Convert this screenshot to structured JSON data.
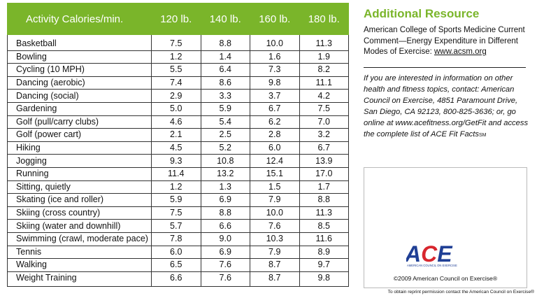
{
  "table": {
    "headers": [
      "Activity Calories/min.",
      "120 lb.",
      "140 lb.",
      "160 lb.",
      "180 lb."
    ],
    "rows": [
      [
        "Basketball",
        "7.5",
        "8.8",
        "10.0",
        "11.3"
      ],
      [
        "Bowling",
        "1.2",
        "1.4",
        "1.6",
        "1.9"
      ],
      [
        "Cycling (10 MPH)",
        "5.5",
        "6.4",
        "7.3",
        "8.2"
      ],
      [
        "Dancing (aerobic)",
        "7.4",
        "8.6",
        "9.8",
        "11.1"
      ],
      [
        "Dancing (social)",
        "2.9",
        "3.3",
        "3.7",
        "4.2"
      ],
      [
        "Gardening",
        "5.0",
        "5.9",
        "6.7",
        "7.5"
      ],
      [
        "Golf (pull/carry clubs)",
        "4.6",
        "5.4",
        "6.2",
        "7.0"
      ],
      [
        "Golf (power cart)",
        "2.1",
        "2.5",
        "2.8",
        "3.2"
      ],
      [
        "Hiking",
        "4.5",
        "5.2",
        "6.0",
        "6.7"
      ],
      [
        "Jogging",
        "9.3",
        "10.8",
        "12.4",
        "13.9"
      ],
      [
        "Running",
        "11.4",
        "13.2",
        "15.1",
        "17.0"
      ],
      [
        "Sitting, quietly",
        "1.2",
        "1.3",
        "1.5",
        "1.7"
      ],
      [
        "Skating (ice and roller)",
        "5.9",
        "6.9",
        "7.9",
        "8.8"
      ],
      [
        "Skiing (cross country)",
        "7.5",
        "8.8",
        "10.0",
        "11.3"
      ],
      [
        "Skiing (water and downhill)",
        "5.7",
        "6.6",
        "7.6",
        "8.5"
      ],
      [
        "Swimming (crawl, moderate pace)",
        "7.8",
        "9.0",
        "10.3",
        "11.6"
      ],
      [
        "Tennis",
        "6.0",
        "6.9",
        "7.9",
        "8.9"
      ],
      [
        "Walking",
        "6.5",
        "7.6",
        "8.7",
        "9.7"
      ],
      [
        "Weight Training",
        "6.6",
        "7.6",
        "8.7",
        "9.8"
      ]
    ]
  },
  "resource": {
    "title": "Additional Resource",
    "text": "American College of Sports Medicine Current Comment—Energy Expenditure in Different Modes of Exercise: ",
    "url": "www.acsm.org"
  },
  "info": {
    "text": "If you are interested in information on other health and fitness topics, contact: American Council on Exercise, 4851 Paramount Drive, San Diego, CA 92123, 800-825-3636; or, go online at www.acefitness.org/GetFit and access the complete list of ACE Fit Facts",
    "mark": "SM"
  },
  "logo": {
    "wordmark": "ACE",
    "tagline": "AMERICAN COUNCIL ON EXERCISE",
    "red": "#d8262e",
    "blue": "#1f3f95"
  },
  "copyright": "©2009 American Council on Exercise®",
  "reprint": "To obtain reprint permission contact the American Council on Exercise®",
  "colors": {
    "accent": "#7ab52a"
  }
}
